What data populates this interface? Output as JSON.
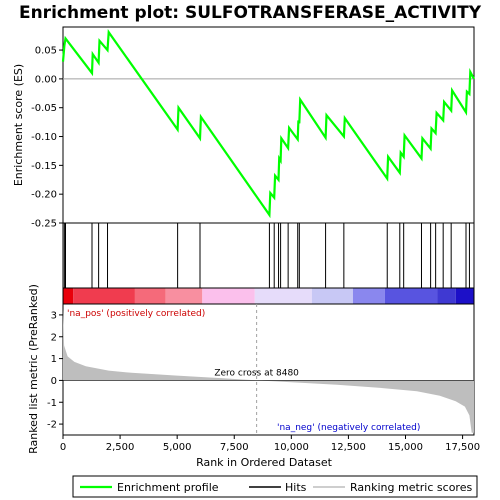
{
  "chart_data": {
    "type": "line",
    "title": "Enrichment plot: SULFOTRANSFERASE_ACTIVITY",
    "ylabel_top": "Enrichment score (ES)",
    "ylabel_bottom": "Ranked list metric (PreRanked)",
    "xlabel": "Rank in Ordered Dataset",
    "xlim": [
      0,
      18000
    ],
    "x_ticks": [
      "0",
      "2,500",
      "5,000",
      "7,500",
      "10,000",
      "12,500",
      "15,000",
      "17,500"
    ],
    "x_tick_values": [
      0,
      2500,
      5000,
      7500,
      10000,
      12500,
      15000,
      17500
    ],
    "es_ylim": [
      -0.25,
      0.09
    ],
    "es_ticks": [
      "0.05",
      "0.00",
      "-0.05",
      "-0.10",
      "-0.15",
      "-0.20",
      "-0.25"
    ],
    "es_tick_values": [
      0.05,
      0.0,
      -0.05,
      -0.1,
      -0.15,
      -0.2,
      -0.25
    ],
    "metric_ylim": [
      -2.5,
      3.5
    ],
    "metric_ticks": [
      "3",
      "2",
      "1",
      "0",
      "-1",
      "-2"
    ],
    "metric_tick_values": [
      3,
      2,
      1,
      0,
      -1,
      -2
    ],
    "series": [
      {
        "name": "Enrichment profile",
        "color": "#00ff00",
        "x": [
          0,
          60,
          110,
          1270,
          1300,
          1560,
          1600,
          1950,
          2000,
          5020,
          5060,
          6000,
          6040,
          9040,
          9080,
          9250,
          9290,
          9440,
          9470,
          9530,
          9560,
          9860,
          9900,
          10280,
          10310,
          10350,
          10390,
          11500,
          11540,
          12300,
          12340,
          14200,
          14240,
          14750,
          14790,
          14920,
          14960,
          15700,
          15740,
          16100,
          16140,
          16320,
          16360,
          16650,
          16690,
          17000,
          17040,
          17650,
          17690,
          17800,
          17840,
          18000
        ],
        "y": [
          0.03,
          0.058,
          0.07,
          0.01,
          0.043,
          0.028,
          0.066,
          0.05,
          0.081,
          -0.088,
          -0.05,
          -0.103,
          -0.066,
          -0.236,
          -0.198,
          -0.206,
          -0.168,
          -0.175,
          -0.138,
          -0.142,
          -0.103,
          -0.12,
          -0.085,
          -0.105,
          -0.072,
          -0.077,
          -0.036,
          -0.102,
          -0.063,
          -0.1,
          -0.068,
          -0.173,
          -0.135,
          -0.163,
          -0.128,
          -0.135,
          -0.098,
          -0.138,
          -0.103,
          -0.121,
          -0.086,
          -0.094,
          -0.059,
          -0.072,
          -0.04,
          -0.055,
          -0.02,
          -0.058,
          -0.022,
          -0.026,
          0.012,
          0.0
        ]
      }
    ],
    "hits": [
      60,
      110,
      1270,
      1560,
      1950,
      5020,
      6000,
      9040,
      9250,
      9440,
      9530,
      9860,
      10280,
      10350,
      11500,
      12300,
      14200,
      14750,
      14920,
      15700,
      16100,
      16320,
      16650,
      17000,
      17650,
      17800
    ],
    "metric_scores": {
      "x": [
        0,
        50,
        200,
        500,
        1000,
        2000,
        3000,
        5000,
        7000,
        8480,
        10000,
        12000,
        14000,
        15500,
        16500,
        17200,
        17600,
        17800,
        17900,
        18000
      ],
      "y": [
        3.3,
        1.6,
        1.1,
        0.85,
        0.65,
        0.45,
        0.35,
        0.22,
        0.1,
        0.0,
        -0.08,
        -0.2,
        -0.35,
        -0.5,
        -0.7,
        -0.95,
        -1.2,
        -1.6,
        -2.4,
        -2.4
      ]
    },
    "zero_cross": 8480,
    "zero_cross_label": "Zero cross at 8480",
    "pos_label": "'na_pos' (positively correlated)",
    "neg_label": "'na_neg' (negatively correlated)",
    "legend": [
      "Enrichment profile",
      "Hits",
      "Ranking metric scores"
    ],
    "colors": {
      "es_line": "#00ff00",
      "hit": "#000000",
      "metric_fill": "#bebebe",
      "pos_text": "#cc0000",
      "neg_text": "#0000cc",
      "zero_line": "#a0a0a0"
    },
    "heatmap_bands": [
      {
        "from": 0,
        "to": 450,
        "color": "#e8000b"
      },
      {
        "from": 450,
        "to": 3150,
        "color": "#f03c4f"
      },
      {
        "from": 3150,
        "to": 4500,
        "color": "#f56a7a"
      },
      {
        "from": 4500,
        "to": 6100,
        "color": "#f88fa0"
      },
      {
        "from": 6100,
        "to": 8400,
        "color": "#fbc0ec"
      },
      {
        "from": 8400,
        "to": 10900,
        "color": "#e6dcfa"
      },
      {
        "from": 10900,
        "to": 12700,
        "color": "#c8c8f5"
      },
      {
        "from": 12700,
        "to": 14100,
        "color": "#8a87ee"
      },
      {
        "from": 14100,
        "to": 16400,
        "color": "#5854e0"
      },
      {
        "from": 16400,
        "to": 17200,
        "color": "#3f39d2"
      },
      {
        "from": 17200,
        "to": 18000,
        "color": "#1c10c8"
      }
    ]
  }
}
